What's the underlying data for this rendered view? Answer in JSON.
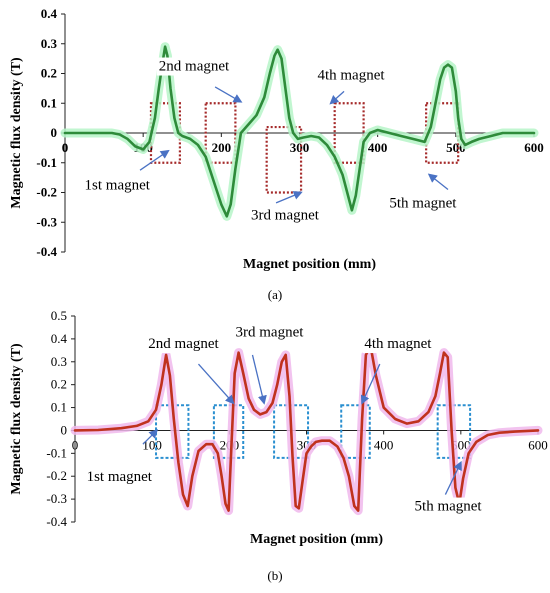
{
  "chart_data": [
    {
      "type": "line",
      "panel_label": "(a)",
      "xlabel": "Magnet position (mm)",
      "ylabel": "Magnetic flux density (T)",
      "xlim": [
        0,
        600
      ],
      "ylim": [
        -0.4,
        0.4
      ],
      "xticks": [
        0,
        100,
        200,
        300,
        400,
        500,
        600
      ],
      "yticks": [
        -0.4,
        -0.3,
        -0.2,
        -0.1,
        0,
        0.1,
        0.2,
        0.3,
        0.4
      ],
      "ytick_labels": [
        "-0.4",
        "-0.3",
        "-0.2",
        "-0.1",
        "0",
        "0.1",
        "0.2",
        "0.3",
        "0.4"
      ],
      "grid": false,
      "line_color": "#2e8b3a",
      "halo_color": "#b6f5c8",
      "box_color": "#a52a2a",
      "series": [
        {
          "x": [
            0,
            20,
            40,
            60,
            70,
            80,
            90,
            100,
            108,
            115,
            120,
            125,
            128,
            131,
            135,
            140,
            145,
            150,
            160,
            170,
            180,
            190,
            200,
            207,
            212,
            218,
            225,
            235,
            245,
            255,
            262,
            268,
            272,
            277,
            282,
            287,
            292,
            298,
            305,
            315,
            325,
            335,
            345,
            355,
            362,
            367,
            372,
            377,
            382,
            390,
            400,
            415,
            430,
            445,
            460,
            468,
            474,
            480,
            485,
            490,
            495,
            500,
            503,
            507,
            512,
            520,
            530,
            545,
            560,
            580,
            600
          ],
          "y": [
            0,
            0,
            0,
            0,
            -0.005,
            -0.02,
            -0.045,
            -0.055,
            -0.03,
            0.05,
            0.15,
            0.24,
            0.29,
            0.26,
            0.15,
            0.05,
            0.0,
            -0.01,
            -0.02,
            -0.04,
            -0.08,
            -0.16,
            -0.24,
            -0.28,
            -0.24,
            -0.12,
            0.0,
            0.03,
            0.06,
            0.12,
            0.2,
            0.26,
            0.28,
            0.25,
            0.15,
            0.05,
            0.0,
            -0.02,
            -0.015,
            -0.01,
            -0.015,
            -0.04,
            -0.08,
            -0.14,
            -0.21,
            -0.26,
            -0.21,
            -0.12,
            -0.03,
            0.0,
            0.01,
            0.0,
            -0.01,
            -0.02,
            -0.03,
            0.02,
            0.1,
            0.18,
            0.22,
            0.23,
            0.22,
            0.14,
            0.05,
            -0.02,
            -0.04,
            -0.03,
            -0.02,
            -0.01,
            0.0,
            0.0,
            0.0
          ]
        }
      ],
      "magnet_boxes": [
        {
          "x0": 110,
          "x1": 147,
          "y0": -0.1,
          "y1": 0.1
        },
        {
          "x0": 180,
          "x1": 218,
          "y0": -0.1,
          "y1": 0.1
        },
        {
          "x0": 258,
          "x1": 302,
          "y0": -0.2,
          "y1": 0.02
        },
        {
          "x0": 345,
          "x1": 382,
          "y0": -0.1,
          "y1": 0.1
        },
        {
          "x0": 462,
          "x1": 503,
          "y0": -0.1,
          "y1": 0.1
        }
      ],
      "annotations": [
        {
          "text": "1st magnet",
          "x": 25,
          "y": -0.19,
          "ax": 96,
          "ay": -0.125,
          "tx": 132,
          "ty": -0.06
        },
        {
          "text": "2nd magnet",
          "x": 120,
          "y": 0.21,
          "ax": 192,
          "ay": 0.155,
          "tx": 225,
          "ty": 0.105
        },
        {
          "text": "3rd magnet",
          "x": 238,
          "y": -0.29,
          "ax": 270,
          "ay": -0.235,
          "tx": 302,
          "ty": -0.2
        },
        {
          "text": "4th magnet",
          "x": 323,
          "y": 0.18,
          "ax": 357,
          "ay": 0.14,
          "tx": 340,
          "ty": 0.1
        },
        {
          "text": "5th magnet",
          "x": 415,
          "y": -0.25,
          "ax": 490,
          "ay": -0.19,
          "tx": 466,
          "ty": -0.14
        }
      ]
    },
    {
      "type": "line",
      "panel_label": "(b)",
      "xlabel": "Magnet position (mm)",
      "ylabel": "Magnetic flux density (T)",
      "xlim": [
        0,
        600
      ],
      "ylim": [
        -0.4,
        0.5
      ],
      "xticks": [
        0,
        100,
        200,
        300,
        400,
        500,
        600
      ],
      "yticks": [
        -0.4,
        -0.3,
        -0.2,
        -0.1,
        0,
        0.1,
        0.2,
        0.3,
        0.4,
        0.5
      ],
      "ytick_labels": [
        "-0.4",
        "-0.3",
        "-0.2",
        "-0.1",
        "0",
        "0.1",
        "0.2",
        "0.3",
        "0.4",
        "0.5"
      ],
      "grid": false,
      "line_color": "#c0321e",
      "halo_color": "#f0b8ec",
      "box_color": "#2a8fd0",
      "series": [
        {
          "x": [
            0,
            30,
            60,
            80,
            95,
            105,
            112,
            118,
            123,
            128,
            134,
            140,
            146,
            152,
            160,
            170,
            178,
            185,
            190,
            195,
            199,
            203,
            207,
            212,
            218,
            225,
            232,
            240,
            248,
            256,
            262,
            268,
            273,
            278,
            282,
            286,
            290,
            295,
            300,
            306,
            312,
            320,
            330,
            340,
            348,
            355,
            362,
            367,
            372,
            377,
            383,
            390,
            400,
            415,
            430,
            445,
            458,
            467,
            473,
            478,
            483,
            488,
            493,
            498,
            503,
            510,
            520,
            535,
            550,
            570,
            600
          ],
          "y": [
            0,
            0.002,
            0.01,
            0.02,
            0.04,
            0.09,
            0.2,
            0.33,
            0.24,
            0.05,
            -0.14,
            -0.28,
            -0.33,
            -0.2,
            -0.09,
            -0.06,
            -0.06,
            -0.1,
            -0.2,
            -0.32,
            -0.35,
            -0.05,
            0.25,
            0.34,
            0.25,
            0.14,
            0.09,
            0.07,
            0.08,
            0.12,
            0.2,
            0.3,
            0.33,
            0.15,
            -0.12,
            -0.33,
            -0.34,
            -0.22,
            -0.1,
            -0.07,
            -0.05,
            -0.045,
            -0.045,
            -0.07,
            -0.12,
            -0.2,
            -0.33,
            -0.35,
            0.05,
            0.33,
            0.37,
            0.24,
            0.1,
            0.05,
            0.03,
            0.04,
            0.08,
            0.15,
            0.25,
            0.34,
            0.32,
            0.0,
            -0.25,
            -0.32,
            -0.21,
            -0.1,
            -0.05,
            -0.02,
            -0.01,
            -0.005,
            0.0
          ]
        }
      ],
      "magnet_boxes": [
        {
          "x0": 105,
          "x1": 147,
          "y0": -0.12,
          "y1": 0.11
        },
        {
          "x0": 180,
          "x1": 218,
          "y0": -0.12,
          "y1": 0.11
        },
        {
          "x0": 258,
          "x1": 302,
          "y0": -0.12,
          "y1": 0.11
        },
        {
          "x0": 345,
          "x1": 382,
          "y0": -0.12,
          "y1": 0.11
        },
        {
          "x0": 470,
          "x1": 512,
          "y0": -0.12,
          "y1": 0.11
        }
      ],
      "annotations": [
        {
          "text": "1st magnet",
          "x": 15,
          "y": -0.22,
          "ax": 88,
          "ay": -0.06,
          "tx": 106,
          "ty": 0.0
        },
        {
          "text": "2nd magnet",
          "x": 95,
          "y": 0.36,
          "ax": 160,
          "ay": 0.29,
          "tx": 205,
          "ty": 0.12
        },
        {
          "text": "3rd magnet",
          "x": 208,
          "y": 0.41,
          "ax": 230,
          "ay": 0.33,
          "tx": 245,
          "ty": 0.12
        },
        {
          "text": "4th magnet",
          "x": 375,
          "y": 0.36,
          "ax": 395,
          "ay": 0.29,
          "tx": 372,
          "ty": 0.12
        },
        {
          "text": "5th magnet",
          "x": 440,
          "y": -0.35,
          "ax": 480,
          "ay": -0.28,
          "tx": 500,
          "ty": -0.14
        }
      ]
    }
  ]
}
